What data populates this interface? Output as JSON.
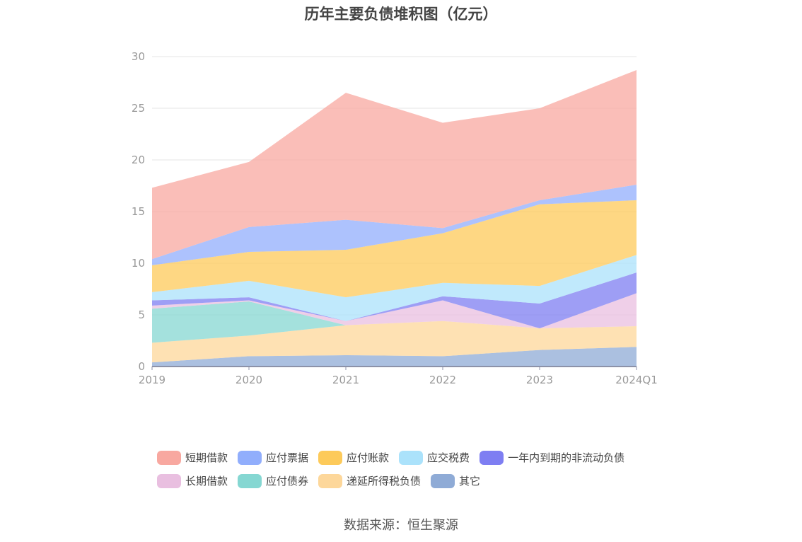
{
  "chart_data": {
    "type": "area",
    "stacked": true,
    "title": "历年主要负债堆积图（亿元）",
    "categories": [
      "2019",
      "2020",
      "2021",
      "2022",
      "2023",
      "2024Q1"
    ],
    "ylim": [
      0,
      30
    ],
    "yticks": [
      "0",
      "5",
      "10",
      "15",
      "20",
      "25",
      "30"
    ],
    "grid": true,
    "legend_position": "bottom",
    "series": [
      {
        "name": "其它",
        "color": "#8fabd6",
        "values": [
          0.4,
          1.0,
          1.1,
          1.0,
          1.6,
          1.9
        ]
      },
      {
        "name": "递延所得税负债",
        "color": "#fdd79a",
        "values": [
          1.9,
          2.0,
          2.9,
          3.4,
          2.1,
          2.0
        ]
      },
      {
        "name": "应付债券",
        "color": "#85d7d2",
        "values": [
          3.3,
          3.3,
          0.0,
          0.0,
          0.0,
          0.0
        ]
      },
      {
        "name": "长期借款",
        "color": "#e9bfe0",
        "values": [
          0.3,
          0.1,
          0.4,
          2.0,
          0.0,
          3.2
        ]
      },
      {
        "name": "一年内到期的非流动负债",
        "color": "#7e7ef2",
        "values": [
          0.5,
          0.3,
          0.0,
          0.4,
          2.4,
          2.0
        ]
      },
      {
        "name": "应交税费",
        "color": "#abe2fb",
        "values": [
          0.8,
          1.6,
          2.3,
          1.3,
          1.7,
          1.7
        ]
      },
      {
        "name": "应付账款",
        "color": "#fdca5a",
        "values": [
          2.6,
          2.8,
          4.6,
          4.8,
          7.9,
          5.3
        ]
      },
      {
        "name": "应付票据",
        "color": "#91aefc",
        "values": [
          0.6,
          2.4,
          2.9,
          0.5,
          0.4,
          1.5
        ]
      },
      {
        "name": "短期借款",
        "color": "#f8a8a0",
        "values": [
          6.9,
          6.3,
          12.3,
          10.2,
          8.9,
          11.1
        ]
      }
    ]
  },
  "legend": {
    "rows": [
      [
        {
          "label": "短期借款",
          "color": "#f8a8a0"
        },
        {
          "label": "应付票据",
          "color": "#91aefc"
        },
        {
          "label": "应付账款",
          "color": "#fdca5a"
        },
        {
          "label": "应交税费",
          "color": "#abe2fb"
        },
        {
          "label": "一年内到期的非流动负债",
          "color": "#7e7ef2"
        }
      ],
      [
        {
          "label": "长期借款",
          "color": "#e9bfe0"
        },
        {
          "label": "应付债券",
          "color": "#85d7d2"
        },
        {
          "label": "递延所得税负债",
          "color": "#fdd79a"
        },
        {
          "label": "其它",
          "color": "#8fabd6"
        }
      ]
    ]
  },
  "source_note": "数据来源：恒生聚源"
}
